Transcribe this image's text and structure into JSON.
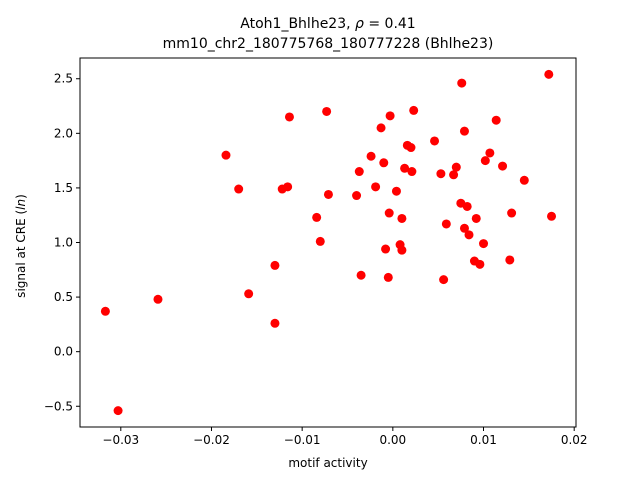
{
  "chart_data": {
    "type": "scatter",
    "title_line1_prefix": "Atoh1_Bhlhe23, ",
    "title_rho_symbol": "ρ",
    "title_rho_suffix": " = 0.41",
    "title_line2": "mm10_chr2_180775768_180777228 (Bhlhe23)",
    "xlabel": "motif activity",
    "ylabel_prefix": "signal at CRE (",
    "ylabel_italic": "ln",
    "ylabel_suffix": ")",
    "xlim": [
      -0.0345,
      0.0202
    ],
    "ylim": [
      -0.69,
      2.69
    ],
    "xticks": [
      -0.03,
      -0.02,
      -0.01,
      0.0,
      0.01,
      0.02
    ],
    "xtick_labels": [
      "−0.03",
      "−0.02",
      "−0.01",
      "0.00",
      "0.01",
      "0.02"
    ],
    "yticks": [
      -0.5,
      0.0,
      0.5,
      1.0,
      1.5,
      2.0,
      2.5
    ],
    "ytick_labels": [
      "−0.5",
      "0.0",
      "0.5",
      "1.0",
      "1.5",
      "2.0",
      "2.5"
    ],
    "grid": false,
    "marker_color": "#ff0000",
    "points": [
      [
        -0.0317,
        0.37
      ],
      [
        -0.0303,
        -0.54
      ],
      [
        -0.0259,
        0.48
      ],
      [
        -0.0184,
        1.8
      ],
      [
        -0.017,
        1.49
      ],
      [
        -0.0159,
        0.53
      ],
      [
        -0.013,
        0.79
      ],
      [
        -0.013,
        0.26
      ],
      [
        -0.0122,
        1.49
      ],
      [
        -0.0116,
        1.51
      ],
      [
        -0.0114,
        2.15
      ],
      [
        -0.0084,
        1.23
      ],
      [
        -0.008,
        1.01
      ],
      [
        -0.0073,
        2.2
      ],
      [
        -0.0071,
        1.44
      ],
      [
        -0.004,
        1.43
      ],
      [
        -0.0037,
        1.65
      ],
      [
        -0.0035,
        0.7
      ],
      [
        -0.0024,
        1.79
      ],
      [
        -0.0019,
        1.51
      ],
      [
        -0.0013,
        2.05
      ],
      [
        -0.001,
        1.73
      ],
      [
        -0.0008,
        0.94
      ],
      [
        -0.0005,
        0.68
      ],
      [
        -0.0004,
        1.27
      ],
      [
        -0.0003,
        2.16
      ],
      [
        0.0004,
        1.47
      ],
      [
        0.0008,
        0.98
      ],
      [
        0.001,
        0.93
      ],
      [
        0.001,
        1.22
      ],
      [
        0.0013,
        1.68
      ],
      [
        0.0016,
        1.89
      ],
      [
        0.002,
        1.87
      ],
      [
        0.0021,
        1.65
      ],
      [
        0.0023,
        2.21
      ],
      [
        0.0046,
        1.93
      ],
      [
        0.0053,
        1.63
      ],
      [
        0.0056,
        0.66
      ],
      [
        0.0059,
        1.17
      ],
      [
        0.0067,
        1.62
      ],
      [
        0.007,
        1.69
      ],
      [
        0.0075,
        1.36
      ],
      [
        0.0076,
        2.46
      ],
      [
        0.0079,
        2.02
      ],
      [
        0.0079,
        1.13
      ],
      [
        0.0082,
        1.33
      ],
      [
        0.0084,
        1.07
      ],
      [
        0.009,
        0.83
      ],
      [
        0.0092,
        1.22
      ],
      [
        0.0096,
        0.8
      ],
      [
        0.01,
        0.99
      ],
      [
        0.0102,
        1.75
      ],
      [
        0.0107,
        1.82
      ],
      [
        0.0114,
        2.12
      ],
      [
        0.0121,
        1.7
      ],
      [
        0.0129,
        0.84
      ],
      [
        0.0131,
        1.27
      ],
      [
        0.0145,
        1.57
      ],
      [
        0.0172,
        2.54
      ],
      [
        0.0175,
        1.24
      ]
    ]
  }
}
